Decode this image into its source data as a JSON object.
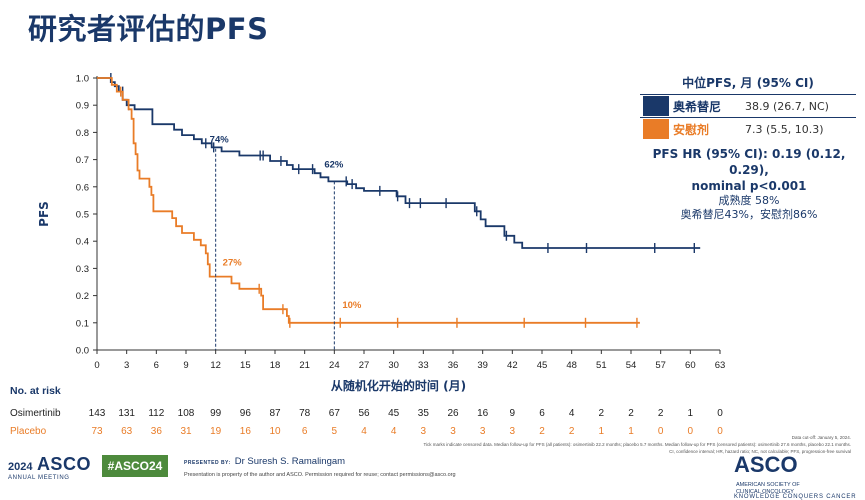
{
  "title": "研究者评估的PFS",
  "chart_data": {
    "type": "line",
    "title": "研究者评估的PFS",
    "xlabel": "从随机化开始的时间 (月)",
    "ylabel": "PFS",
    "xlim": [
      0,
      63
    ],
    "ylim": [
      0,
      1
    ],
    "xticks": [
      0,
      3,
      6,
      9,
      12,
      15,
      18,
      21,
      24,
      27,
      30,
      33,
      36,
      39,
      42,
      45,
      48,
      51,
      54,
      57,
      60,
      63
    ],
    "yticks": [
      "0.0",
      "0.1",
      "0.2",
      "0.3",
      "0.4",
      "0.5",
      "0.6",
      "0.7",
      "0.8",
      "0.9",
      "1.0"
    ],
    "series": [
      {
        "name": "奥希替尼",
        "color": "#1a3869",
        "points": [
          [
            0,
            1.0
          ],
          [
            1.4,
            1.0
          ],
          [
            1.4,
            0.985
          ],
          [
            1.8,
            0.985
          ],
          [
            1.8,
            0.97
          ],
          [
            2.2,
            0.97
          ],
          [
            2.2,
            0.95
          ],
          [
            2.6,
            0.95
          ],
          [
            2.6,
            0.92
          ],
          [
            3,
            0.92
          ],
          [
            3,
            0.9
          ],
          [
            3.8,
            0.9
          ],
          [
            3.8,
            0.885
          ],
          [
            5.6,
            0.885
          ],
          [
            5.6,
            0.83
          ],
          [
            7.8,
            0.83
          ],
          [
            7.8,
            0.81
          ],
          [
            8.6,
            0.81
          ],
          [
            8.6,
            0.79
          ],
          [
            9.8,
            0.79
          ],
          [
            9.8,
            0.775
          ],
          [
            10.6,
            0.775
          ],
          [
            10.6,
            0.76
          ],
          [
            11.6,
            0.76
          ],
          [
            11.6,
            0.745
          ],
          [
            12.6,
            0.745
          ],
          [
            12.6,
            0.73
          ],
          [
            14.4,
            0.73
          ],
          [
            14.4,
            0.715
          ],
          [
            17.5,
            0.715
          ],
          [
            17.5,
            0.695
          ],
          [
            19.2,
            0.695
          ],
          [
            19.2,
            0.68
          ],
          [
            19.8,
            0.68
          ],
          [
            19.8,
            0.665
          ],
          [
            22,
            0.665
          ],
          [
            22,
            0.65
          ],
          [
            22.6,
            0.65
          ],
          [
            22.6,
            0.635
          ],
          [
            23.4,
            0.635
          ],
          [
            23.4,
            0.62
          ],
          [
            25.3,
            0.62
          ],
          [
            25.3,
            0.61
          ],
          [
            26.2,
            0.61
          ],
          [
            26.2,
            0.595
          ],
          [
            27,
            0.595
          ],
          [
            27,
            0.585
          ],
          [
            30.3,
            0.585
          ],
          [
            30.3,
            0.565
          ],
          [
            31.2,
            0.565
          ],
          [
            31.2,
            0.54
          ],
          [
            38.2,
            0.54
          ],
          [
            38.2,
            0.51
          ],
          [
            38.8,
            0.51
          ],
          [
            38.8,
            0.48
          ],
          [
            39.3,
            0.48
          ],
          [
            39.3,
            0.455
          ],
          [
            41.2,
            0.455
          ],
          [
            41.2,
            0.42
          ],
          [
            42.2,
            0.42
          ],
          [
            42.2,
            0.395
          ],
          [
            43,
            0.395
          ],
          [
            43,
            0.375
          ],
          [
            61,
            0.375
          ]
        ],
        "censors": [
          [
            1.4,
            1.0
          ],
          [
            2.6,
            0.95
          ],
          [
            3.2,
            0.9
          ],
          [
            11,
            0.76
          ],
          [
            11.8,
            0.745
          ],
          [
            16.5,
            0.715
          ],
          [
            16.8,
            0.715
          ],
          [
            18.6,
            0.695
          ],
          [
            20.4,
            0.665
          ],
          [
            21.8,
            0.665
          ],
          [
            25.2,
            0.62
          ],
          [
            25.8,
            0.61
          ],
          [
            28.6,
            0.585
          ],
          [
            30.4,
            0.565
          ],
          [
            31.6,
            0.54
          ],
          [
            32.7,
            0.54
          ],
          [
            35.3,
            0.54
          ],
          [
            38.4,
            0.51
          ],
          [
            41.4,
            0.42
          ],
          [
            45.6,
            0.375
          ],
          [
            49.5,
            0.375
          ],
          [
            56.4,
            0.375
          ],
          [
            60.4,
            0.375
          ]
        ],
        "dashed": {
          "x": 24,
          "y": 0.62,
          "label": "62%"
        },
        "dashed2": {
          "x": 12,
          "y": 0.74,
          "label": "74%"
        }
      },
      {
        "name": "安慰剂",
        "color": "#e97c27",
        "points": [
          [
            0,
            1.0
          ],
          [
            1.5,
            1.0
          ],
          [
            1.5,
            0.975
          ],
          [
            2,
            0.975
          ],
          [
            2,
            0.95
          ],
          [
            2.6,
            0.95
          ],
          [
            2.6,
            0.92
          ],
          [
            3.2,
            0.92
          ],
          [
            3.2,
            0.885
          ],
          [
            3.5,
            0.885
          ],
          [
            3.5,
            0.85
          ],
          [
            3.7,
            0.85
          ],
          [
            3.7,
            0.76
          ],
          [
            3.9,
            0.76
          ],
          [
            3.9,
            0.72
          ],
          [
            4.1,
            0.72
          ],
          [
            4.1,
            0.66
          ],
          [
            4.3,
            0.66
          ],
          [
            4.3,
            0.63
          ],
          [
            5.3,
            0.63
          ],
          [
            5.3,
            0.6
          ],
          [
            5.5,
            0.6
          ],
          [
            5.5,
            0.57
          ],
          [
            5.7,
            0.57
          ],
          [
            5.7,
            0.51
          ],
          [
            7.6,
            0.51
          ],
          [
            7.6,
            0.485
          ],
          [
            8,
            0.485
          ],
          [
            8,
            0.455
          ],
          [
            8.6,
            0.455
          ],
          [
            8.6,
            0.43
          ],
          [
            9.8,
            0.43
          ],
          [
            9.8,
            0.405
          ],
          [
            10.5,
            0.405
          ],
          [
            10.5,
            0.385
          ],
          [
            11,
            0.385
          ],
          [
            11,
            0.355
          ],
          [
            11.2,
            0.355
          ],
          [
            11.2,
            0.315
          ],
          [
            11.4,
            0.315
          ],
          [
            11.4,
            0.27
          ],
          [
            13.6,
            0.27
          ],
          [
            13.6,
            0.245
          ],
          [
            14.4,
            0.245
          ],
          [
            14.4,
            0.225
          ],
          [
            16.6,
            0.225
          ],
          [
            16.6,
            0.2
          ],
          [
            16.8,
            0.2
          ],
          [
            16.8,
            0.15
          ],
          [
            19.2,
            0.15
          ],
          [
            19.2,
            0.125
          ],
          [
            19.4,
            0.125
          ],
          [
            19.4,
            0.1
          ],
          [
            54.9,
            0.1
          ]
        ],
        "censors": [
          [
            2.4,
            0.95
          ],
          [
            16.4,
            0.225
          ],
          [
            18.8,
            0.15
          ],
          [
            19.5,
            0.1
          ],
          [
            24.6,
            0.1
          ],
          [
            30.4,
            0.1
          ],
          [
            36.4,
            0.1
          ],
          [
            43.2,
            0.1
          ],
          [
            49.4,
            0.1
          ],
          [
            54.6,
            0.1
          ]
        ],
        "dashed": {
          "x": 24,
          "y": 0.1,
          "label": "10%"
        },
        "dashed2": {
          "x": 12,
          "y": 0.27,
          "label": "27%"
        }
      }
    ]
  },
  "at_risk": {
    "heading": "No. at risk",
    "rows": [
      {
        "label": "Osimertinib",
        "values": [
          "143",
          "131",
          "112",
          "108",
          "99",
          "96",
          "87",
          "78",
          "67",
          "56",
          "45",
          "35",
          "26",
          "16",
          "9",
          "6",
          "4",
          "2",
          "2",
          "2",
          "1",
          "0"
        ]
      },
      {
        "label": "Placebo",
        "values": [
          "73",
          "63",
          "36",
          "31",
          "19",
          "16",
          "10",
          "6",
          "5",
          "4",
          "4",
          "3",
          "3",
          "3",
          "3",
          "2",
          "2",
          "1",
          "1",
          "0",
          "0",
          "0"
        ]
      }
    ]
  },
  "legend": {
    "heading": "中位PFS, 月 (95% CI)",
    "rows": [
      {
        "name": "奥希替尼",
        "value": "38.9 (26.7, NC)",
        "color": "#1a3869"
      },
      {
        "name": "安慰剂",
        "value": "7.3 (5.5, 10.3)",
        "color": "#e97c27"
      }
    ]
  },
  "hr": {
    "line1": "PFS HR (95% CI): 0.19 (0.12, 0.29),",
    "line2": "nominal p<0.001",
    "line3": "成熟度 58%",
    "line4": "奥希替尼43%，安慰剂86%"
  },
  "footnotes": {
    "cutoff": "Data cut-off: January 5, 2024.",
    "note1": "Tick marks indicate censored data. Median follow-up for PFS (all patients): osimertinib 22.2 months; placebo 5.7 months. Median follow-up for PFS (censored patients): osimertinib 27.6 months, placebo 22.1 months.",
    "note2": "CI, confidence interval; HR, hazard ratio; NC, not calculable; PFS, progression-free survival"
  },
  "footer": {
    "year": "2024",
    "asco": "ASCO",
    "meeting": "ANNUAL MEETING",
    "hashtag": "#ASCO24",
    "presented_label": "PRESENTED BY:",
    "presenter": "Dr Suresh S. Ramalingam",
    "notice": "Presentation is property of the author and ASCO. Permission required for reuse; contact permissions@asco.org",
    "logo": "ASCO",
    "society1": "AMERICAN SOCIETY OF",
    "society2": "CLINICAL ONCOLOGY",
    "tagline": "KNOWLEDGE CONQUERS CANCER"
  }
}
